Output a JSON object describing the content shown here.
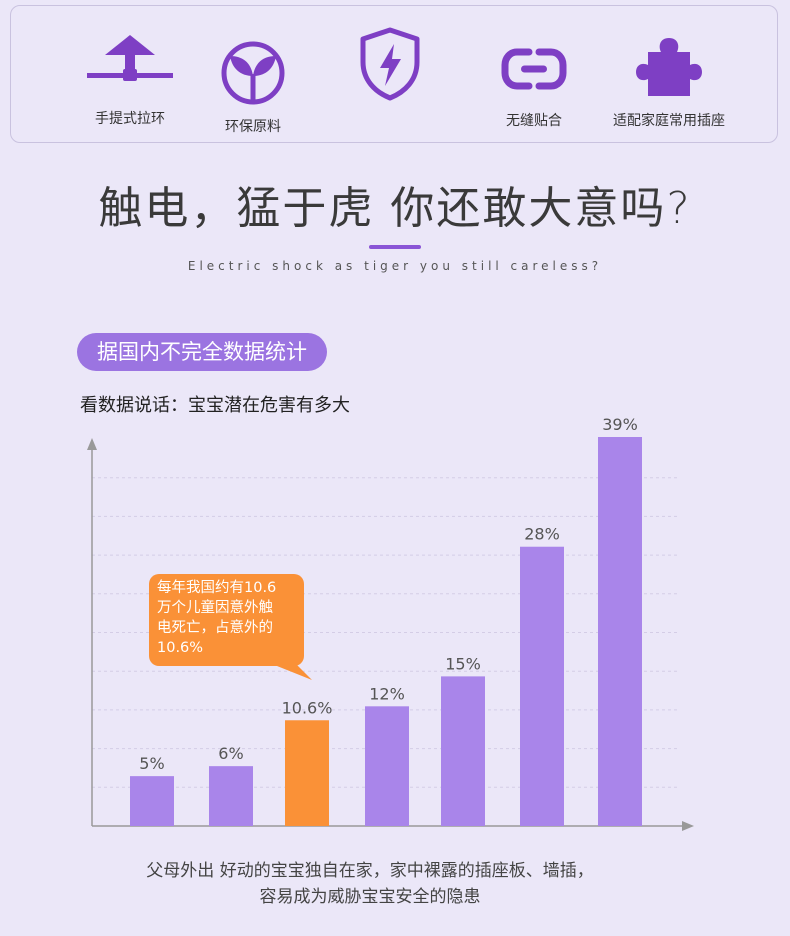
{
  "features": [
    {
      "label": "手提式拉环",
      "icon": "lift-handle-icon"
    },
    {
      "label": "环保原料",
      "icon": "leaf-sprout-icon"
    },
    {
      "label": "",
      "icon": "lightning-shield-icon"
    },
    {
      "label": "无缝贴合",
      "icon": "chain-link-icon"
    },
    {
      "label": "适配家庭常用插座",
      "icon": "puzzle-piece-icon"
    }
  ],
  "headline": {
    "main": "触电，猛于虎 你还敢大意吗?",
    "sub": "Electric shock as tiger you still careless?"
  },
  "section": {
    "tag": "据国内不完全数据统计",
    "caption": "看数据说话：宝宝潜在危害有多大"
  },
  "chart_data": {
    "type": "bar",
    "values": [
      5,
      6,
      10.6,
      12,
      15,
      28,
      39
    ],
    "value_labels": [
      "5%",
      "6%",
      "10.6%",
      "12%",
      "15%",
      "28%",
      "39%"
    ],
    "highlight_index": 2,
    "ylim": [
      0,
      40
    ],
    "grid": true,
    "annotation": {
      "lines": [
        "每年我国约有10.6",
        "万个儿童因意外触",
        "电死亡，占意外的",
        "10.6%"
      ],
      "target_index": 2
    }
  },
  "colors": {
    "accent": "#9b74e1",
    "bar": "#a985ea",
    "highlight": "#fa9137",
    "background": "#ebe7f8"
  },
  "footer": {
    "line1": "父母外出 好动的宝宝独自在家，家中裸露的插座板、墙插，",
    "line2": "容易成为威胁宝宝安全的隐患"
  }
}
